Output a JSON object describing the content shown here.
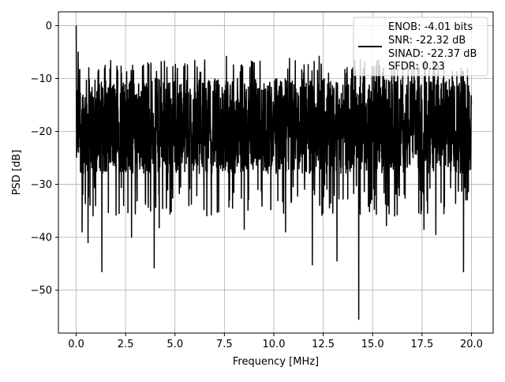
{
  "chart_data": {
    "type": "line",
    "title": "",
    "xlabel": "Frequency [MHz]",
    "ylabel": "PSD [dB]",
    "xlim": [
      -0.9,
      21.1
    ],
    "ylim": [
      -58.1,
      2.6
    ],
    "x_ticks": [
      0.0,
      2.5,
      5.0,
      7.5,
      10.0,
      12.5,
      15.0,
      17.5,
      20.0
    ],
    "x_tick_labels": [
      "0.0",
      "2.5",
      "5.0",
      "7.5",
      "10.0",
      "12.5",
      "15.0",
      "17.5",
      "20.0"
    ],
    "y_ticks": [
      0,
      -10,
      -20,
      -30,
      -40,
      -50
    ],
    "y_tick_labels": [
      "0",
      "−10",
      "−20",
      "−30",
      "−40",
      "−50"
    ],
    "grid": true,
    "legend_position": "top-right",
    "legend_lines": [
      "ENOB: -4.01 bits",
      "SNR: -22.32 dB",
      "SINAD: -22.37 dB",
      "SFDR: 0.23"
    ],
    "series": [
      {
        "color": "#000000",
        "sampled": true,
        "x_range": [
          0.0,
          20.0
        ],
        "typical_band": [
          -28,
          -10
        ],
        "upper_peaks": [
          {
            "x": 0.0,
            "y": 0.0
          },
          {
            "x": 0.1,
            "y": -5.0
          },
          {
            "x": 2.9,
            "y": -8.5
          },
          {
            "x": 4.3,
            "y": -6.8
          },
          {
            "x": 6.5,
            "y": -6.5
          },
          {
            "x": 7.6,
            "y": -5.8
          },
          {
            "x": 9.3,
            "y": -6.7
          },
          {
            "x": 10.8,
            "y": -6.2
          },
          {
            "x": 12.3,
            "y": -5.8
          },
          {
            "x": 14.6,
            "y": -6.8
          },
          {
            "x": 15.3,
            "y": -6.5
          },
          {
            "x": 16.8,
            "y": -7.0
          },
          {
            "x": 18.6,
            "y": -7.5
          },
          {
            "x": 19.8,
            "y": -8.2
          }
        ],
        "lower_dips": [
          {
            "x": 0.3,
            "y": -39.0
          },
          {
            "x": 0.6,
            "y": -41.0
          },
          {
            "x": 1.3,
            "y": -46.5
          },
          {
            "x": 2.8,
            "y": -40.0
          },
          {
            "x": 3.95,
            "y": -45.8
          },
          {
            "x": 4.2,
            "y": -38.2
          },
          {
            "x": 8.5,
            "y": -38.5
          },
          {
            "x": 10.6,
            "y": -39.0
          },
          {
            "x": 11.95,
            "y": -45.2
          },
          {
            "x": 13.2,
            "y": -44.5
          },
          {
            "x": 14.3,
            "y": -55.5
          },
          {
            "x": 15.7,
            "y": -37.8
          },
          {
            "x": 17.6,
            "y": -38.5
          },
          {
            "x": 18.2,
            "y": -39.5
          },
          {
            "x": 19.6,
            "y": -46.5
          }
        ]
      }
    ]
  }
}
